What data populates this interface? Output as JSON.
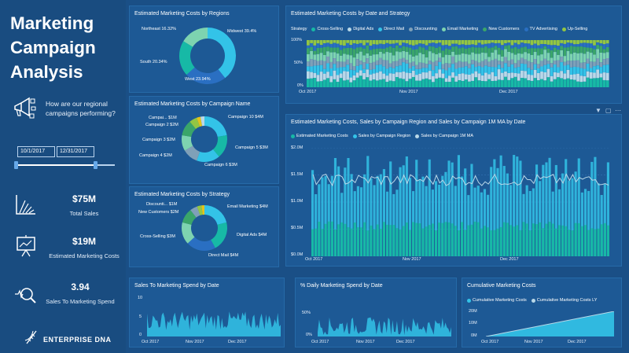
{
  "left": {
    "title": [
      "Marketing",
      "Campaign",
      "Analysis"
    ],
    "question": "How are our regional campaigns performing?",
    "date_start": "10/1/2017",
    "date_end": "12/31/2017",
    "slider_fraction": [
      0,
      0.8
    ],
    "kpis": [
      {
        "value": "$75M",
        "label": "Total Sales",
        "icon": "sales-chart-icon"
      },
      {
        "value": "$19M",
        "label": "Estimated Marketing Costs",
        "icon": "presentation-icon"
      },
      {
        "value": "3.94",
        "label": "Sales To Marketing Spend",
        "icon": "magnifier-chart-icon"
      }
    ],
    "brand": "ENTERPRISE DNA",
    "brand_icon": "dna-icon"
  },
  "colors": {
    "teal": "#17b9a6",
    "light_blue": "#33c3e8",
    "green": "#3aa56a",
    "lime": "#93c643",
    "gray_blue": "#7fa0b8",
    "mint": "#7dd3b0",
    "pale": "#b9d8e8",
    "yellow": "#e4c31c",
    "dark_blue": "#2a6fc2"
  },
  "charts": {
    "regions": {
      "title": "Estimated Marketing Costs by Regions",
      "chart_data": {
        "type": "pie",
        "slices": [
          {
            "label": "Midwest 39.4%",
            "value": 39.4
          },
          {
            "label": "West 23.94%",
            "value": 23.94
          },
          {
            "label": "South 20.34%",
            "value": 20.34
          },
          {
            "label": "Northeast 16.32%",
            "value": 16.32
          }
        ]
      }
    },
    "campaign": {
      "title": "Estimated Marketing Costs by Campaign Name",
      "chart_data": {
        "type": "pie",
        "slices": [
          {
            "label": "Campaign 10 $4M",
            "value": 4
          },
          {
            "label": "Campaign 5 $3M",
            "value": 3
          },
          {
            "label": "Campaign 6 $3M",
            "value": 3
          },
          {
            "label": "Campaign 4 $2M",
            "value": 2
          },
          {
            "label": "Campaign 3 $2M",
            "value": 2
          },
          {
            "label": "Campaign 2 $2M",
            "value": 2
          },
          {
            "label": "Campai... $1M",
            "value": 1
          },
          {
            "label": "",
            "value": 0.5
          },
          {
            "label": "",
            "value": 0.5
          }
        ]
      }
    },
    "strategy": {
      "title": "Estimated Marketing Costs by Strategy",
      "chart_data": {
        "type": "pie",
        "slices": [
          {
            "label": "Email Marketing $4M",
            "value": 4
          },
          {
            "label": "Digital Ads $4M",
            "value": 4
          },
          {
            "label": "Direct Mail $4M",
            "value": 4
          },
          {
            "label": "Cross-Selling $3M",
            "value": 3
          },
          {
            "label": "New Customers $2M",
            "value": 2
          },
          {
            "label": "Discounti... $1M",
            "value": 1
          },
          {
            "label": "",
            "value": 0.6
          },
          {
            "label": "",
            "value": 0.4
          }
        ]
      }
    },
    "date_strategy": {
      "title": "Estimated Marketing Costs by Date and Strategy",
      "legend_title": "Strategy",
      "chart_data": {
        "type": "bar",
        "stacked": "100%",
        "series": [
          {
            "name": "Cross-Selling",
            "avg_share": 0.17
          },
          {
            "name": "Digital Ads",
            "avg_share": 0.14
          },
          {
            "name": "Direct Mail",
            "avg_share": 0.14
          },
          {
            "name": "Discounting",
            "avg_share": 0.12
          },
          {
            "name": "Email Marketing",
            "avg_share": 0.15
          },
          {
            "name": "New Customers",
            "avg_share": 0.12
          },
          {
            "name": "TV Advertising",
            "avg_share": 0.08
          },
          {
            "name": "Up-Selling",
            "avg_share": 0.08
          }
        ],
        "y_ticks": [
          "100%",
          "50%",
          "0%"
        ],
        "x_ticks": [
          "Oct 2017",
          "Nov 2017",
          "Dec 2017"
        ],
        "ylim": [
          0,
          100
        ]
      }
    },
    "sales_region": {
      "title": "Estimated Marketing Costs, Sales by Campaign Region and Sales by Campaign 1M MA by Date",
      "chart_data": {
        "type": "bar",
        "series": [
          {
            "name": "Estimated Marketing Costs",
            "approx_level": 0.28
          },
          {
            "name": "Sales by Campaign Region",
            "approx_level": 0.75
          },
          {
            "name": "Sales by Campaign 1M MA",
            "approx_level": 0.85
          }
        ],
        "y_ticks": [
          "$2.0M",
          "$1.5M",
          "$1.0M",
          "$0.5M",
          "$0.0M"
        ],
        "x_ticks": [
          "Oct 2017",
          "Nov 2017",
          "Dec 2017"
        ],
        "ylim": [
          0,
          2.0
        ]
      }
    },
    "sales_spend": {
      "title": "Sales To Marketing Spend by Date",
      "chart_data": {
        "type": "area",
        "y_ticks": [
          "10",
          "5",
          "0"
        ],
        "x_ticks": [
          "Oct 2017",
          "Nov 2017",
          "Dec 2017"
        ],
        "ylim": [
          0,
          10
        ]
      }
    },
    "daily_spend": {
      "title": "% Daily Marketing Spend by Date",
      "chart_data": {
        "type": "area",
        "y_ticks": [
          "50%",
          "0%"
        ],
        "x_ticks": [
          "Oct 2017",
          "Nov 2017",
          "Dec 2017"
        ]
      }
    },
    "cumulative": {
      "title": "Cumulative Marketing Costs",
      "chart_data": {
        "type": "area",
        "series": [
          {
            "name": "Cumulative Marketing Costs"
          },
          {
            "name": "Cumulative Marketing Costs LY"
          }
        ],
        "y_ticks": [
          "20M",
          "10M",
          "0M"
        ],
        "x_ticks": [
          "Oct 2017",
          "Nov 2017",
          "Dec 2017"
        ],
        "ylim": [
          0,
          20
        ]
      }
    }
  }
}
